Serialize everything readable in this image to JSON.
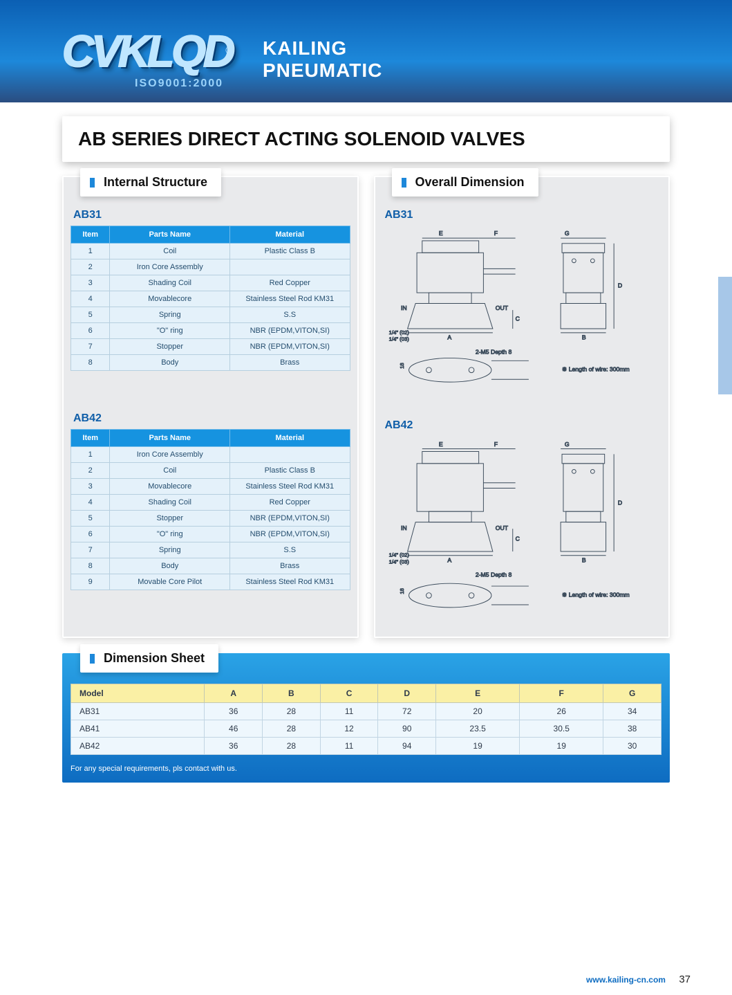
{
  "banner": {
    "logo": "CVKLQD",
    "iso": "ISO9001:2000",
    "brand_line1": "KAILING",
    "brand_line2": "PNEUMATIC"
  },
  "page_title": "AB SERIES DIRECT ACTING SOLENOID VALVES",
  "sections": {
    "internal": "Internal Structure",
    "overall": "Overall Dimension",
    "dim_sheet": "Dimension Sheet"
  },
  "colors": {
    "table_header_bg": "#1693e0",
    "table_row_bg": "#e4f1fa",
    "panel_bg": "#e9eaec",
    "dim_header_bg": "#faf0a5",
    "dim_row_bg": "#eef7fd",
    "dim_wrap_gradient_top": "#2aa3e6",
    "dim_wrap_gradient_bottom": "#0e6cc1"
  },
  "parts_tables": {
    "headers": [
      "Item",
      "Parts Name",
      "Material"
    ],
    "ab31_label": "AB31",
    "ab31_rows": [
      [
        "1",
        "Coil",
        "Plastic Class B"
      ],
      [
        "2",
        "Iron Core Assembly",
        ""
      ],
      [
        "3",
        "Shading Coil",
        "Red Copper"
      ],
      [
        "4",
        "Movablecore",
        "Stainless Steel Rod KM31"
      ],
      [
        "5",
        "Spring",
        "S.S"
      ],
      [
        "6",
        "\"O\" ring",
        "NBR (EPDM,VITON,SI)"
      ],
      [
        "7",
        "Stopper",
        "NBR (EPDM,VITON,SI)"
      ],
      [
        "8",
        "Body",
        "Brass"
      ]
    ],
    "ab42_label": "AB42",
    "ab42_rows": [
      [
        "1",
        "Iron Core Assembly",
        ""
      ],
      [
        "2",
        "Coil",
        "Plastic Class B"
      ],
      [
        "3",
        "Movablecore",
        "Stainless Steel Rod KM31"
      ],
      [
        "4",
        "Shading Coil",
        "Red Copper"
      ],
      [
        "5",
        "Stopper",
        "NBR (EPDM,VITON,SI)"
      ],
      [
        "6",
        "\"O\" ring",
        "NBR (EPDM,VITON,SI)"
      ],
      [
        "7",
        "Spring",
        "S.S"
      ],
      [
        "8",
        "Body",
        "Brass"
      ],
      [
        "9",
        "Movable Core Pilot",
        "Stainless Steel Rod KM31"
      ]
    ]
  },
  "drawings": {
    "ab31_label": "AB31",
    "ab42_label": "AB42",
    "labels": {
      "E": "E",
      "F": "F",
      "G": "G",
      "D": "D",
      "A": "A",
      "B": "B",
      "C": "C",
      "IN": "IN",
      "OUT": "OUT",
      "port1": "1/4\" (02)",
      "port2": "1/4\" (03)",
      "mount": "2-M5 Depth 8",
      "wire": "※ Length of wire: 300mm",
      "eighteen": "18"
    }
  },
  "dim_table": {
    "headers": [
      "Model",
      "A",
      "B",
      "C",
      "D",
      "E",
      "F",
      "G"
    ],
    "rows": [
      [
        "AB31",
        "36",
        "28",
        "11",
        "72",
        "20",
        "26",
        "34"
      ],
      [
        "AB41",
        "46",
        "28",
        "12",
        "90",
        "23.5",
        "30.5",
        "38"
      ],
      [
        "AB42",
        "36",
        "28",
        "11",
        "94",
        "19",
        "19",
        "30"
      ]
    ],
    "note": "For any special requirements, pls contact with us."
  },
  "footer": {
    "url": "www.kailing-cn.com",
    "page": "37"
  }
}
